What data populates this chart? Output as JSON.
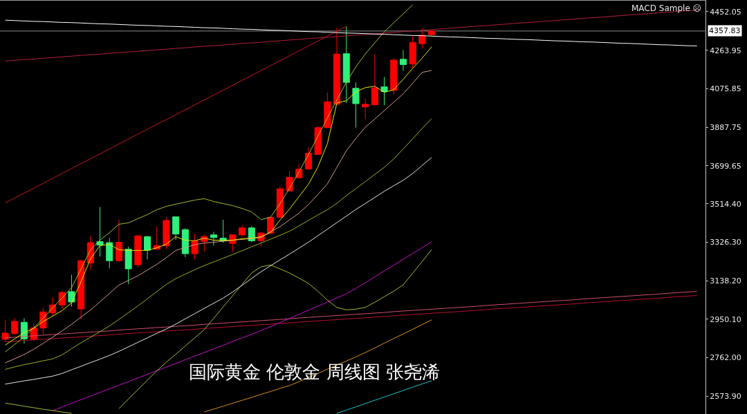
{
  "chart_data": {
    "type": "candlestick",
    "annotations": [
      "MACD Sample ☹",
      "国际黄金 伦敦金 周线图 张尧浠"
    ],
    "categories": [
      null,
      null,
      null,
      null,
      null,
      null,
      null,
      null,
      null,
      null,
      null,
      null,
      null,
      null,
      null,
      null,
      null,
      null,
      null,
      null,
      null,
      null,
      null,
      null,
      null,
      null,
      null,
      null,
      null,
      null,
      null,
      null,
      null,
      null,
      null,
      null,
      null,
      null,
      null,
      null,
      null,
      null,
      null,
      null,
      null,
      null,
      null,
      null,
      null,
      null,
      null,
      null,
      null,
      null,
      null,
      null,
      null,
      null,
      null,
      null,
      null,
      null,
      null,
      null,
      null,
      null,
      null,
      null,
      null,
      null,
      null,
      null,
      null,
      null
    ],
    "ohlc": [
      [
        2852,
        2944,
        2841,
        2882
      ],
      [
        2880,
        2955,
        2874,
        2939
      ],
      [
        2935,
        2955,
        2831,
        2854
      ],
      [
        2852,
        2928,
        2844,
        2908
      ],
      [
        2907,
        3006,
        2877,
        2986
      ],
      [
        2981,
        3057,
        2966,
        3020
      ],
      [
        3019,
        3090,
        3000,
        3081
      ],
      [
        3085,
        3167,
        3012,
        3034
      ],
      [
        3000,
        3242,
        2950,
        3236
      ],
      [
        3225,
        3357,
        3191,
        3324
      ],
      [
        3329,
        3498,
        3256,
        3312
      ],
      [
        3324,
        3349,
        3199,
        3236
      ],
      [
        3236,
        3436,
        3232,
        3326
      ],
      [
        3292,
        3304,
        3121,
        3196
      ],
      [
        3216,
        3362,
        3205,
        3357
      ],
      [
        3353,
        3357,
        3242,
        3287
      ],
      [
        3292,
        3403,
        3290,
        3310
      ],
      [
        3309,
        3447,
        3292,
        3432
      ],
      [
        3450,
        3452,
        3337,
        3366
      ],
      [
        3388,
        3394,
        3253,
        3270
      ],
      [
        3270,
        3366,
        3242,
        3332
      ],
      [
        3330,
        3362,
        3281,
        3354
      ],
      [
        3362,
        3377,
        3309,
        3349
      ],
      [
        3346,
        3436,
        3324,
        3332
      ],
      [
        3320,
        3365,
        3279,
        3362
      ],
      [
        3362,
        3410,
        3353,
        3396
      ],
      [
        3396,
        3405,
        3326,
        3333
      ],
      [
        3334,
        3377,
        3306,
        3371
      ],
      [
        3371,
        3451,
        3367,
        3448
      ],
      [
        3448,
        3598,
        3445,
        3587
      ],
      [
        3577,
        3674,
        3572,
        3643
      ],
      [
        3641,
        3708,
        3636,
        3683
      ],
      [
        3684,
        3789,
        3680,
        3761
      ],
      [
        3755,
        3894,
        3752,
        3886
      ],
      [
        3886,
        4057,
        3882,
        4012
      ],
      [
        4000,
        4374,
        3997,
        4245
      ],
      [
        4247,
        4380,
        4006,
        4107
      ],
      [
        4078,
        4107,
        3886,
        4003
      ],
      [
        3987,
        4028,
        3927,
        4000
      ],
      [
        3998,
        4245,
        3990,
        4080
      ],
      [
        4085,
        4133,
        3995,
        4062
      ],
      [
        4068,
        4225,
        4045,
        4216
      ],
      [
        4220,
        4264,
        4163,
        4194
      ],
      [
        4197,
        4332,
        4175,
        4301
      ],
      [
        4296,
        4371,
        4272,
        4337
      ],
      [
        4340,
        4362,
        4338,
        4357.83
      ],
      null,
      null,
      null,
      null,
      null,
      null,
      null,
      null,
      null,
      null,
      null,
      null,
      null,
      null,
      null,
      null,
      null,
      null,
      null,
      null,
      null,
      null,
      null,
      null,
      null,
      null,
      null,
      null
    ],
    "colors": [
      "#ff0000",
      "#ff0000",
      "#2ef07c",
      "#ff0000",
      "#ff0000",
      "#ff0000",
      "#ff0000",
      "#2ef07c",
      "#ff0000",
      "#ff0000",
      "#2ef07c",
      "#2ef07c",
      "#ff0000",
      "#2ef07c",
      "#ff0000",
      "#2ef07c",
      "#ff0000",
      "#ff0000",
      "#2ef07c",
      "#2ef07c",
      "#ff0000",
      "#ff0000",
      "#2ef07c",
      "#2ef07c",
      "#ff0000",
      "#ff0000",
      "#2ef07c",
      "#ff0000",
      "#ff0000",
      "#ff0000",
      "#ff0000",
      "#ff0000",
      "#ff0000",
      "#ff0000",
      "#ff0000",
      "#ff0000",
      "#2ef07c",
      "#2ef07c",
      "#ff0000",
      "#ff0000",
      "#2ef07c",
      "#ff0000",
      "#2ef07c",
      "#ff0000",
      "#ff0000",
      "#ff0000",
      null,
      null,
      null,
      null,
      null,
      null,
      null,
      null,
      null,
      null,
      null,
      null,
      null,
      null,
      null,
      null,
      null,
      null,
      null,
      null,
      null,
      null,
      null,
      null,
      null,
      null,
      null,
      null
    ],
    "series": [
      {
        "type": "line",
        "color": "#b8102e",
        "values": [
          2839,
          2842,
          2846,
          2849,
          2852,
          2855,
          2858,
          2861,
          2864,
          2867,
          2870,
          2873,
          2877,
          2880,
          2883,
          2886,
          2889,
          2892,
          2895,
          2898,
          2901,
          2905,
          2908,
          2911,
          2914,
          2917,
          2920,
          2923,
          2926,
          2929,
          2932,
          2936,
          2939,
          2942,
          2945,
          2948,
          2951,
          2954,
          2957,
          2960,
          2963,
          2967,
          2970,
          2973,
          2976,
          2979,
          2982,
          2985,
          2988,
          2991,
          2994,
          2998,
          3001,
          3004,
          3007,
          3010,
          3013,
          3016,
          3019,
          3022,
          3025,
          3029,
          3032,
          3035,
          3038,
          3041,
          3044,
          3047,
          3050,
          3053,
          3057,
          3060,
          3063,
          3066
        ]
      },
      {
        "type": "line",
        "color": "#d0506e",
        "values": [
          2859,
          2862,
          2866,
          2869,
          2872,
          2875,
          2878,
          2881,
          2884,
          2887,
          2890,
          2893,
          2897,
          2900,
          2903,
          2906,
          2909,
          2912,
          2915,
          2918,
          2921,
          2925,
          2928,
          2931,
          2934,
          2937,
          2940,
          2943,
          2946,
          2949,
          2952,
          2956,
          2959,
          2962,
          2965,
          2968,
          2971,
          2974,
          2977,
          2980,
          2983,
          2987,
          2990,
          2993,
          2996,
          2999,
          3002,
          3005,
          3008,
          3011,
          3014,
          3018,
          3021,
          3024,
          3027,
          3030,
          3033,
          3036,
          3039,
          3042,
          3045,
          3049,
          3052,
          3055,
          3058,
          3061,
          3064,
          3067,
          3070,
          3073,
          3077,
          3080,
          3083,
          3086
        ]
      },
      {
        "type": "line",
        "color": "#20c8d0",
        "values": [
          null,
          null,
          null,
          null,
          null,
          null,
          null,
          null,
          null,
          null,
          null,
          null,
          null,
          null,
          null,
          null,
          null,
          null,
          null,
          null,
          null,
          null,
          null,
          null,
          null,
          null,
          null,
          null,
          null,
          null,
          null,
          null,
          null,
          null,
          null,
          2490,
          2506,
          2522,
          2538,
          2554,
          2570,
          2586,
          2602,
          2618,
          2634,
          2650,
          null,
          null,
          null,
          null,
          null,
          null,
          null,
          null,
          null,
          null,
          null,
          null,
          null,
          null,
          null,
          null,
          null,
          null,
          null,
          null,
          null,
          null,
          null,
          null,
          null,
          null,
          null,
          null
        ]
      },
      {
        "type": "line",
        "color": "#d8901c",
        "values": [
          null,
          null,
          null,
          null,
          null,
          null,
          null,
          null,
          null,
          null,
          null,
          null,
          null,
          null,
          null,
          null,
          null,
          null,
          null,
          null,
          null,
          2497,
          2511,
          2525,
          2540,
          2554,
          2568,
          2583,
          2597,
          2612,
          2626,
          2645,
          2665,
          2685,
          2706,
          2726,
          2746,
          2766,
          2787,
          2810,
          2833,
          2856,
          2878,
          2901,
          2924,
          2947,
          null,
          null,
          null,
          null,
          null,
          null,
          null,
          null,
          null,
          null,
          null,
          null,
          null,
          null,
          null,
          null,
          null,
          null,
          null,
          null,
          null,
          null,
          null,
          null,
          null,
          null,
          null,
          null
        ]
      },
      {
        "type": "line",
        "color": "#c810c8",
        "values": [
          null,
          null,
          null,
          null,
          null,
          2503,
          2521,
          2539,
          2557,
          2574,
          2592,
          2610,
          2628,
          2645,
          2663,
          2681,
          2699,
          2716,
          2734,
          2752,
          2770,
          2787,
          2805,
          2823,
          2841,
          2859,
          2876,
          2894,
          2914,
          2934,
          2954,
          2974,
          2994,
          3014,
          3034,
          3054,
          3074,
          3100,
          3128,
          3157,
          3186,
          3214,
          3243,
          3271,
          3300,
          3328,
          null,
          null,
          null,
          null,
          null,
          null,
          null,
          null,
          null,
          null,
          null,
          null,
          null,
          null,
          null,
          null,
          null,
          null,
          null,
          null,
          null,
          null,
          null,
          null,
          null,
          null,
          null,
          null
        ]
      },
      {
        "type": "line",
        "color": "#9cc030",
        "values": [
          2540,
          2533,
          2525,
          2518,
          2510,
          2504,
          2497,
          2490,
          null,
          null,
          null,
          null,
          2513,
          2560,
          2606,
          2652,
          2698,
          2740,
          2779,
          2819,
          2859,
          2899,
          2954,
          3010,
          3065,
          3120,
          3176,
          3206,
          3215,
          3196,
          3176,
          3151,
          3125,
          3087,
          3043,
          3007,
          2996,
          2999,
          3008,
          3033,
          3060,
          3087,
          3118,
          3175,
          3232,
          3290,
          null,
          null,
          null,
          null,
          null,
          null,
          null,
          null,
          null,
          null,
          null,
          null,
          null,
          null,
          null,
          null,
          null,
          null,
          null,
          null,
          null,
          null,
          null,
          null,
          null,
          null,
          null,
          null
        ]
      },
      {
        "type": "line",
        "color": "#e6e6e6",
        "values": [
          2633,
          2641,
          2649,
          2656,
          2664,
          2672,
          2685,
          2703,
          2720,
          2738,
          2755,
          2773,
          2793,
          2815,
          2837,
          2859,
          2881,
          2902,
          2926,
          2952,
          2977,
          3003,
          3028,
          3053,
          3083,
          3116,
          3149,
          3182,
          3211,
          3240,
          3268,
          3297,
          3326,
          3358,
          3390,
          3422,
          3454,
          3486,
          3515,
          3545,
          3575,
          3602,
          3629,
          3662,
          3701,
          3740,
          null,
          null,
          null,
          null,
          null,
          null,
          null,
          null,
          null,
          null,
          null,
          null,
          null,
          null,
          null,
          null,
          null,
          null,
          null,
          null,
          null,
          null,
          null,
          null,
          null,
          null,
          null,
          null
        ]
      },
      {
        "type": "line",
        "color": "#94b424",
        "values": [
          2705,
          2717,
          2728,
          2737,
          2747,
          2756,
          2776,
          2806,
          2835,
          2862,
          2889,
          2917,
          2949,
          2982,
          3015,
          3050,
          3085,
          3120,
          3148,
          3170,
          3192,
          3212,
          3230,
          3248,
          3266,
          3285,
          3304,
          3322,
          3341,
          3360,
          3380,
          3406,
          3433,
          3459,
          3485,
          3516,
          3554,
          3588,
          3622,
          3657,
          3692,
          3733,
          3782,
          3831,
          3882,
          3930,
          null,
          null,
          null,
          null,
          null,
          null,
          null,
          null,
          null,
          null,
          null,
          null,
          null,
          null,
          null,
          null,
          null,
          null,
          null,
          null,
          null,
          null,
          null,
          null,
          null,
          null,
          null,
          null
        ]
      },
      {
        "type": "line",
        "color": "#d49a8c",
        "values": [
          2737,
          2757,
          2778,
          2803,
          2832,
          2862,
          2893,
          2925,
          2960,
          2995,
          3035,
          3076,
          3117,
          3139,
          3162,
          3190,
          3218,
          3251,
          3286,
          3300,
          3314,
          3322,
          3326,
          3331,
          3336,
          3340,
          3344,
          3349,
          3378,
          3402,
          3435,
          3468,
          3510,
          3560,
          3611,
          3692,
          3773,
          3833,
          3888,
          3928,
          3969,
          4010,
          4051,
          4103,
          4156,
          4165,
          null,
          null,
          null,
          null,
          null,
          null,
          null,
          null,
          null,
          null,
          null,
          null,
          null,
          null,
          null,
          null,
          null,
          null,
          null,
          null,
          null,
          null,
          null,
          null,
          null,
          null,
          null,
          null
        ]
      },
      {
        "type": "line",
        "color": "#9cc030",
        "values": [
          2790,
          2827,
          2864,
          2908,
          2955,
          3006,
          3053,
          3104,
          3195,
          3289,
          3336,
          3373,
          3414,
          3421,
          3441,
          3461,
          3485,
          3501,
          3512,
          3522,
          3532,
          3539,
          3525,
          3515,
          3505,
          3491,
          3474,
          3437,
          3448,
          3515,
          3589,
          3670,
          3754,
          3845,
          3933,
          4021,
          4108,
          4182,
          4246,
          4300,
          4354,
          4398,
          4442,
          4486,
          null,
          null,
          null,
          null,
          null,
          null,
          null,
          null,
          null,
          null,
          null,
          null,
          null,
          null,
          null,
          null,
          null,
          null,
          null,
          null,
          null,
          null,
          null,
          null,
          null,
          null,
          null,
          null,
          null,
          null
        ]
      },
      {
        "type": "line",
        "color": "#e8e800",
        "values": [
          2824,
          2854,
          2885,
          2905,
          2939,
          2965,
          2992,
          3030,
          3134,
          3245,
          3309,
          3316,
          3289,
          3286,
          3286,
          3286,
          3299,
          3316,
          3353,
          3336,
          3333,
          3346,
          3336,
          3336,
          3336,
          3343,
          3346,
          3353,
          3373,
          3434,
          3488,
          3549,
          3609,
          3694,
          3808,
          4007,
          4017,
          4061,
          4081,
          4088,
          4058,
          4071,
          4122,
          4176,
          4226,
          4280,
          null,
          null,
          null,
          null,
          null,
          null,
          null,
          null,
          null,
          null,
          null,
          null,
          null,
          null,
          null,
          null,
          null,
          null,
          null,
          null,
          null,
          null,
          null,
          null,
          null,
          null,
          null,
          null
        ]
      },
      {
        "type": "line",
        "color": "#c81424",
        "values": [
          3518,
          3542,
          3566,
          3590,
          3614,
          3638,
          3662,
          3686,
          3710,
          3734,
          3758,
          3782,
          3806,
          3830,
          3854,
          3878,
          3902,
          3925,
          3949,
          3973,
          3997,
          4021,
          4045,
          4069,
          4093,
          4117,
          4141,
          4165,
          4189,
          4213,
          4237,
          4261,
          4285,
          4309,
          4333,
          4357,
          4381,
          null,
          null,
          null,
          null,
          null,
          null,
          null,
          null,
          null,
          null,
          null,
          null,
          null,
          null,
          null,
          null,
          null,
          null,
          null,
          null,
          null,
          null,
          null,
          null,
          null,
          null,
          null,
          null,
          null,
          null,
          null,
          null,
          null,
          null,
          null,
          null,
          null
        ]
      },
      {
        "type": "line",
        "color": "#b4203e",
        "values": [
          4211,
          4215,
          4218,
          4221,
          4225,
          4228,
          4232,
          4235,
          4239,
          4242,
          4245,
          4249,
          4252,
          4256,
          4259,
          4262,
          4266,
          4269,
          4273,
          4276,
          4280,
          4283,
          4286,
          4290,
          4293,
          4297,
          4300,
          4303,
          4307,
          4310,
          4314,
          4317,
          4321,
          4324,
          4327,
          4331,
          4334,
          4338,
          4341,
          4344,
          4348,
          4351,
          4355,
          4358,
          4361,
          4365,
          4368,
          4372,
          4375,
          4379,
          4382,
          4385,
          4389,
          4392,
          4396,
          4399,
          4402,
          4406,
          4409,
          4413,
          4416,
          4420,
          4423,
          4426,
          4430,
          4433,
          4437,
          4440,
          4443,
          4447,
          4450,
          4454,
          4457,
          4460
        ]
      },
      {
        "type": "line",
        "color": "#ffffff",
        "values": [
          4411,
          4409,
          4407,
          4405,
          4404,
          4402,
          4400,
          4399,
          4397,
          4395,
          4393,
          4392,
          4390,
          4388,
          4386,
          4385,
          4383,
          4381,
          4380,
          4378,
          4376,
          4374,
          4373,
          4371,
          4369,
          4367,
          4366,
          4364,
          4362,
          4361,
          4359,
          4357,
          4355,
          4354,
          4352,
          4350,
          4348,
          4347,
          4345,
          4343,
          4342,
          4340,
          4338,
          4336,
          4335,
          4333,
          4331,
          4329,
          4328,
          4326,
          4324,
          4322,
          4321,
          4319,
          4317,
          4316,
          4314,
          4312,
          4310,
          4309,
          4307,
          4305,
          4304,
          4302,
          4300,
          4298,
          4297,
          4295,
          4293,
          4291,
          4290,
          4288,
          4286,
          4285
        ]
      }
    ],
    "ylim": [
      2487,
      4506
    ],
    "yticks": [
      4452.05,
      4263.95,
      4075.85,
      3887.75,
      3699.65,
      {
        "value": 3514.4,
        "label": "3514.40"
      },
      {
        "value": 3326.3,
        "label": "3326.30"
      },
      {
        "value": 3138.2,
        "label": "3138.20"
      },
      {
        "value": 2950.1,
        "label": "2950.10"
      },
      {
        "value": 2762.0,
        "label": "2762.00"
      },
      {
        "value": 2573.9,
        "label": "2573.90"
      }
    ],
    "ref_lines": [
      {
        "axis": "y",
        "value": 4357.83,
        "label": "4357.83",
        "color": "#8c8c8c"
      }
    ],
    "tick_labels": "y",
    "grid": false
  }
}
